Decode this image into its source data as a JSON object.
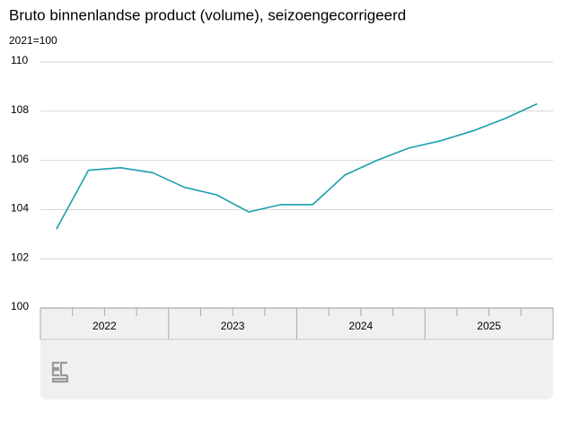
{
  "chart_data": {
    "type": "line",
    "title": "Bruto binnenlandse product (volume), seizoengecorrigeerd",
    "subtitle": "2021=100",
    "categories": [
      null,
      null,
      null,
      null,
      null,
      null,
      null,
      null,
      null,
      null,
      null,
      null,
      null,
      null,
      null,
      null
    ],
    "year_labels": [
      "2022",
      "2023",
      "2024",
      "2025"
    ],
    "series": [
      {
        "name": "Bruto binnenlandse product",
        "color": "#1a9fb0",
        "values": [
          103.2,
          105.6,
          105.7,
          105.5,
          104.9,
          104.6,
          103.9,
          104.2,
          104.2,
          105.4,
          106.0,
          106.5,
          106.8,
          107.2,
          107.7,
          108.3
        ]
      }
    ],
    "ylim": [
      100,
      110
    ],
    "yticks": [
      100,
      102,
      104,
      106,
      108,
      110
    ],
    "grid": true
  }
}
